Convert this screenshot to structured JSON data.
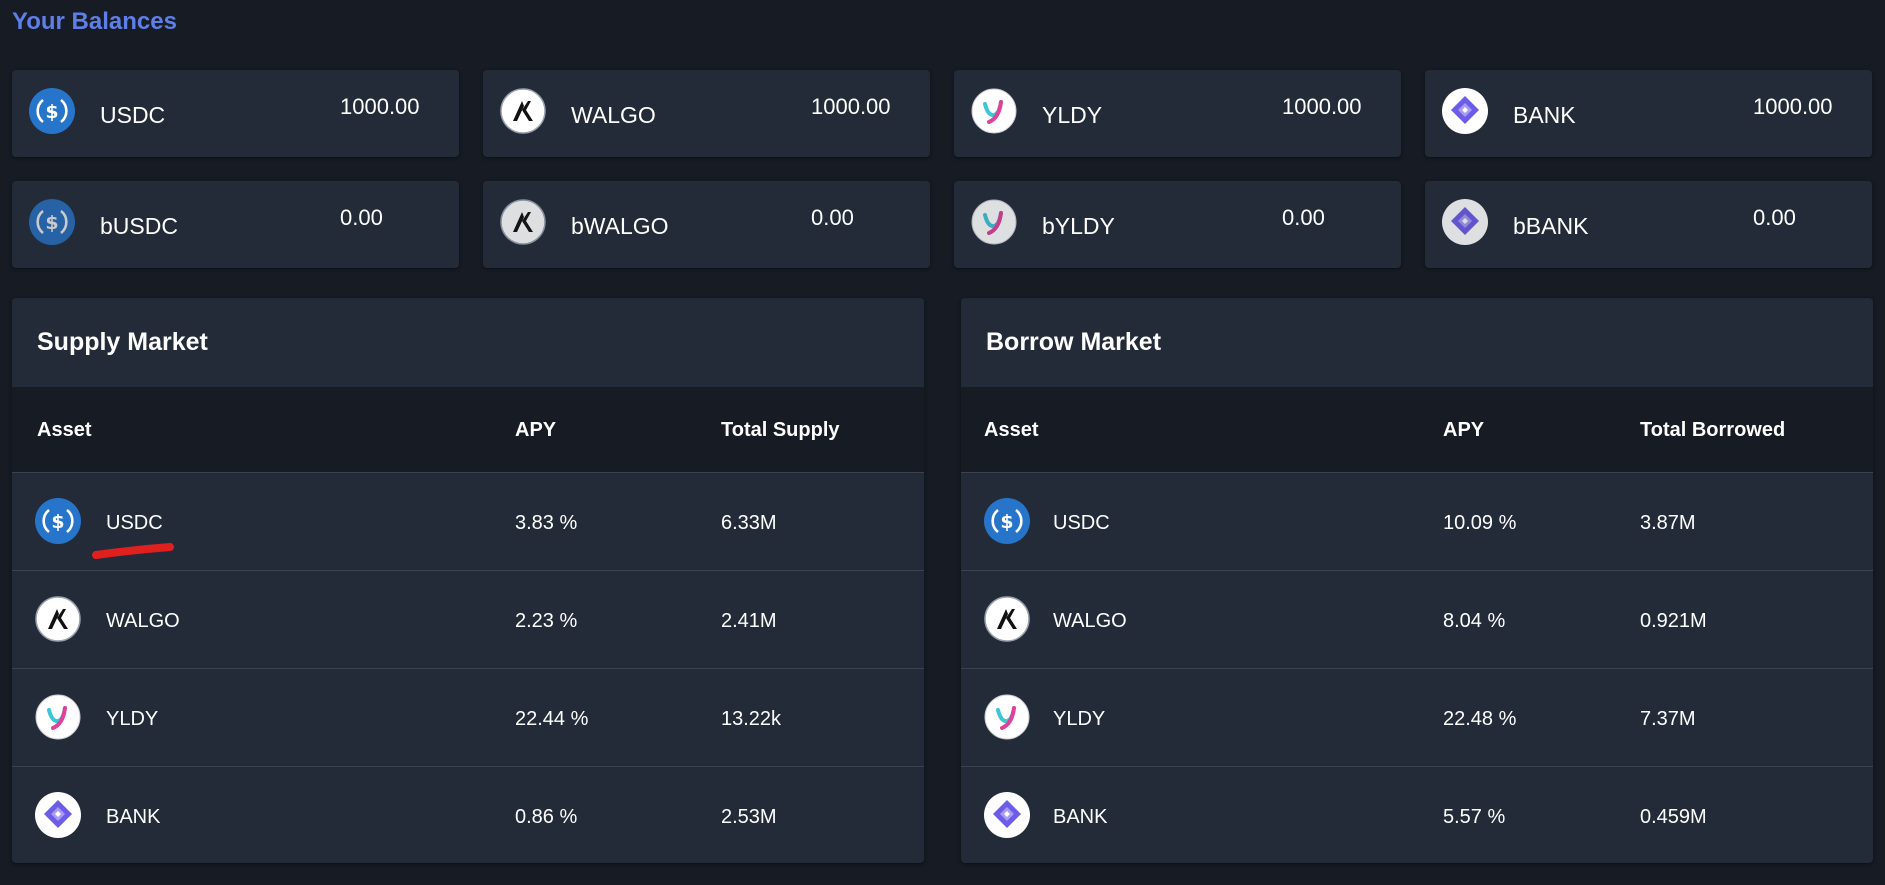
{
  "balances_title": "Your Balances",
  "balances": [
    {
      "name": "USDC",
      "amount": "1000.00",
      "icon": "usdc-icon"
    },
    {
      "name": "WALGO",
      "amount": "1000.00",
      "icon": "algo-icon"
    },
    {
      "name": "YLDY",
      "amount": "1000.00",
      "icon": "yldy-icon"
    },
    {
      "name": "BANK",
      "amount": "1000.00",
      "icon": "bank-icon"
    },
    {
      "name": "bUSDC",
      "amount": "0.00",
      "icon": "usdc-icon"
    },
    {
      "name": "bWALGO",
      "amount": "0.00",
      "icon": "algo-icon"
    },
    {
      "name": "bYLDY",
      "amount": "0.00",
      "icon": "yldy-icon"
    },
    {
      "name": "bBANK",
      "amount": "0.00",
      "icon": "bank-icon"
    }
  ],
  "supply": {
    "title": "Supply Market",
    "headers": {
      "asset": "Asset",
      "apy": "APY",
      "total": "Total Supply"
    },
    "rows": [
      {
        "asset": "USDC",
        "apy": "3.83 %",
        "total": "6.33M",
        "icon": "usdc-icon"
      },
      {
        "asset": "WALGO",
        "apy": "2.23 %",
        "total": "2.41M",
        "icon": "algo-icon"
      },
      {
        "asset": "YLDY",
        "apy": "22.44 %",
        "total": "13.22k",
        "icon": "yldy-icon"
      },
      {
        "asset": "BANK",
        "apy": "0.86 %",
        "total": "2.53M",
        "icon": "bank-icon"
      }
    ]
  },
  "borrow": {
    "title": "Borrow Market",
    "headers": {
      "asset": "Asset",
      "apy": "APY",
      "total": "Total Borrowed"
    },
    "rows": [
      {
        "asset": "USDC",
        "apy": "10.09 %",
        "total": "3.87M",
        "icon": "usdc-icon"
      },
      {
        "asset": "WALGO",
        "apy": "8.04 %",
        "total": "0.921M",
        "icon": "algo-icon"
      },
      {
        "asset": "YLDY",
        "apy": "22.48 %",
        "total": "7.37M",
        "icon": "yldy-icon"
      },
      {
        "asset": "BANK",
        "apy": "5.57 %",
        "total": "0.459M",
        "icon": "bank-icon"
      }
    ]
  },
  "colors": {
    "background": "#161b24",
    "card": "#232b38",
    "title_accent": "#5e7ee8",
    "usdc_blue": "#2775ca",
    "bank_purple": "#6c5ce7",
    "annotation_red": "#e0201f"
  }
}
